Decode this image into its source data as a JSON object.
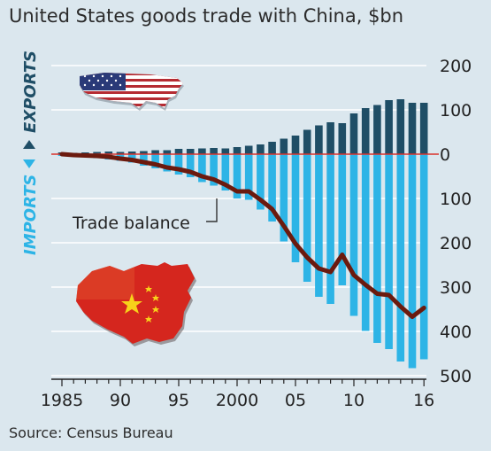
{
  "chart_data": {
    "type": "bar",
    "title": "United States goods trade with China, $bn",
    "source": "Source: Census Bureau",
    "x": [
      1985,
      1986,
      1987,
      1988,
      1989,
      1990,
      1991,
      1992,
      1993,
      1994,
      1995,
      1996,
      1997,
      1998,
      1999,
      2000,
      2001,
      2002,
      2003,
      2004,
      2005,
      2006,
      2007,
      2008,
      2009,
      2010,
      2011,
      2012,
      2013,
      2014,
      2015,
      2016
    ],
    "x_tick_labels": [
      "1985",
      "90",
      "95",
      "2000",
      "05",
      "10",
      "16"
    ],
    "x_tick_years": [
      1985,
      1990,
      1995,
      2000,
      2005,
      2010,
      2016
    ],
    "y_tick_labels": [
      "200",
      "100",
      "0",
      "100",
      "200",
      "300",
      "400",
      "500"
    ],
    "y_tick_values": [
      200,
      100,
      0,
      -100,
      -200,
      -300,
      -400,
      -500
    ],
    "ylim": [
      -500,
      200
    ],
    "side_labels": {
      "upper": "EXPORTS",
      "lower": "IMPORTS"
    },
    "series": [
      {
        "values": [
          4,
          3,
          4,
          5,
          6,
          5,
          6,
          7,
          9,
          9,
          12,
          12,
          13,
          14,
          13,
          16,
          19,
          22,
          28,
          35,
          42,
          55,
          65,
          72,
          70,
          92,
          104,
          111,
          122,
          124,
          116,
          116
        ]
      },
      {
        "values": [
          -4,
          -5,
          -6,
          -9,
          -12,
          -15,
          -19,
          -26,
          -32,
          -39,
          -46,
          -52,
          -63,
          -71,
          -82,
          -100,
          -103,
          -125,
          -152,
          -197,
          -244,
          -288,
          -322,
          -338,
          -296,
          -365,
          -399,
          -426,
          -440,
          -468,
          -483,
          -463
        ]
      },
      {
        "name": "Trade balance",
        "values": [
          0,
          -2,
          -3,
          -4,
          -6,
          -10,
          -13,
          -18,
          -23,
          -30,
          -34,
          -40,
          -50,
          -57,
          -69,
          -84,
          -84,
          -103,
          -124,
          -162,
          -202,
          -233,
          -258,
          -266,
          -227,
          -273,
          -295,
          -315,
          -318,
          -344,
          -367,
          -347
        ]
      }
    ],
    "colors": {
      "exports": "#1f4e66",
      "imports": "#2db4e6",
      "balance": "#6b1a0e",
      "zero_line": "#d9322a",
      "grid": "#ffffff",
      "upper_label": "#1f4e66",
      "lower_label": "#2db4e6"
    },
    "grid": true,
    "icons": [
      "usa-flag-map-icon",
      "china-flag-map-icon"
    ]
  }
}
